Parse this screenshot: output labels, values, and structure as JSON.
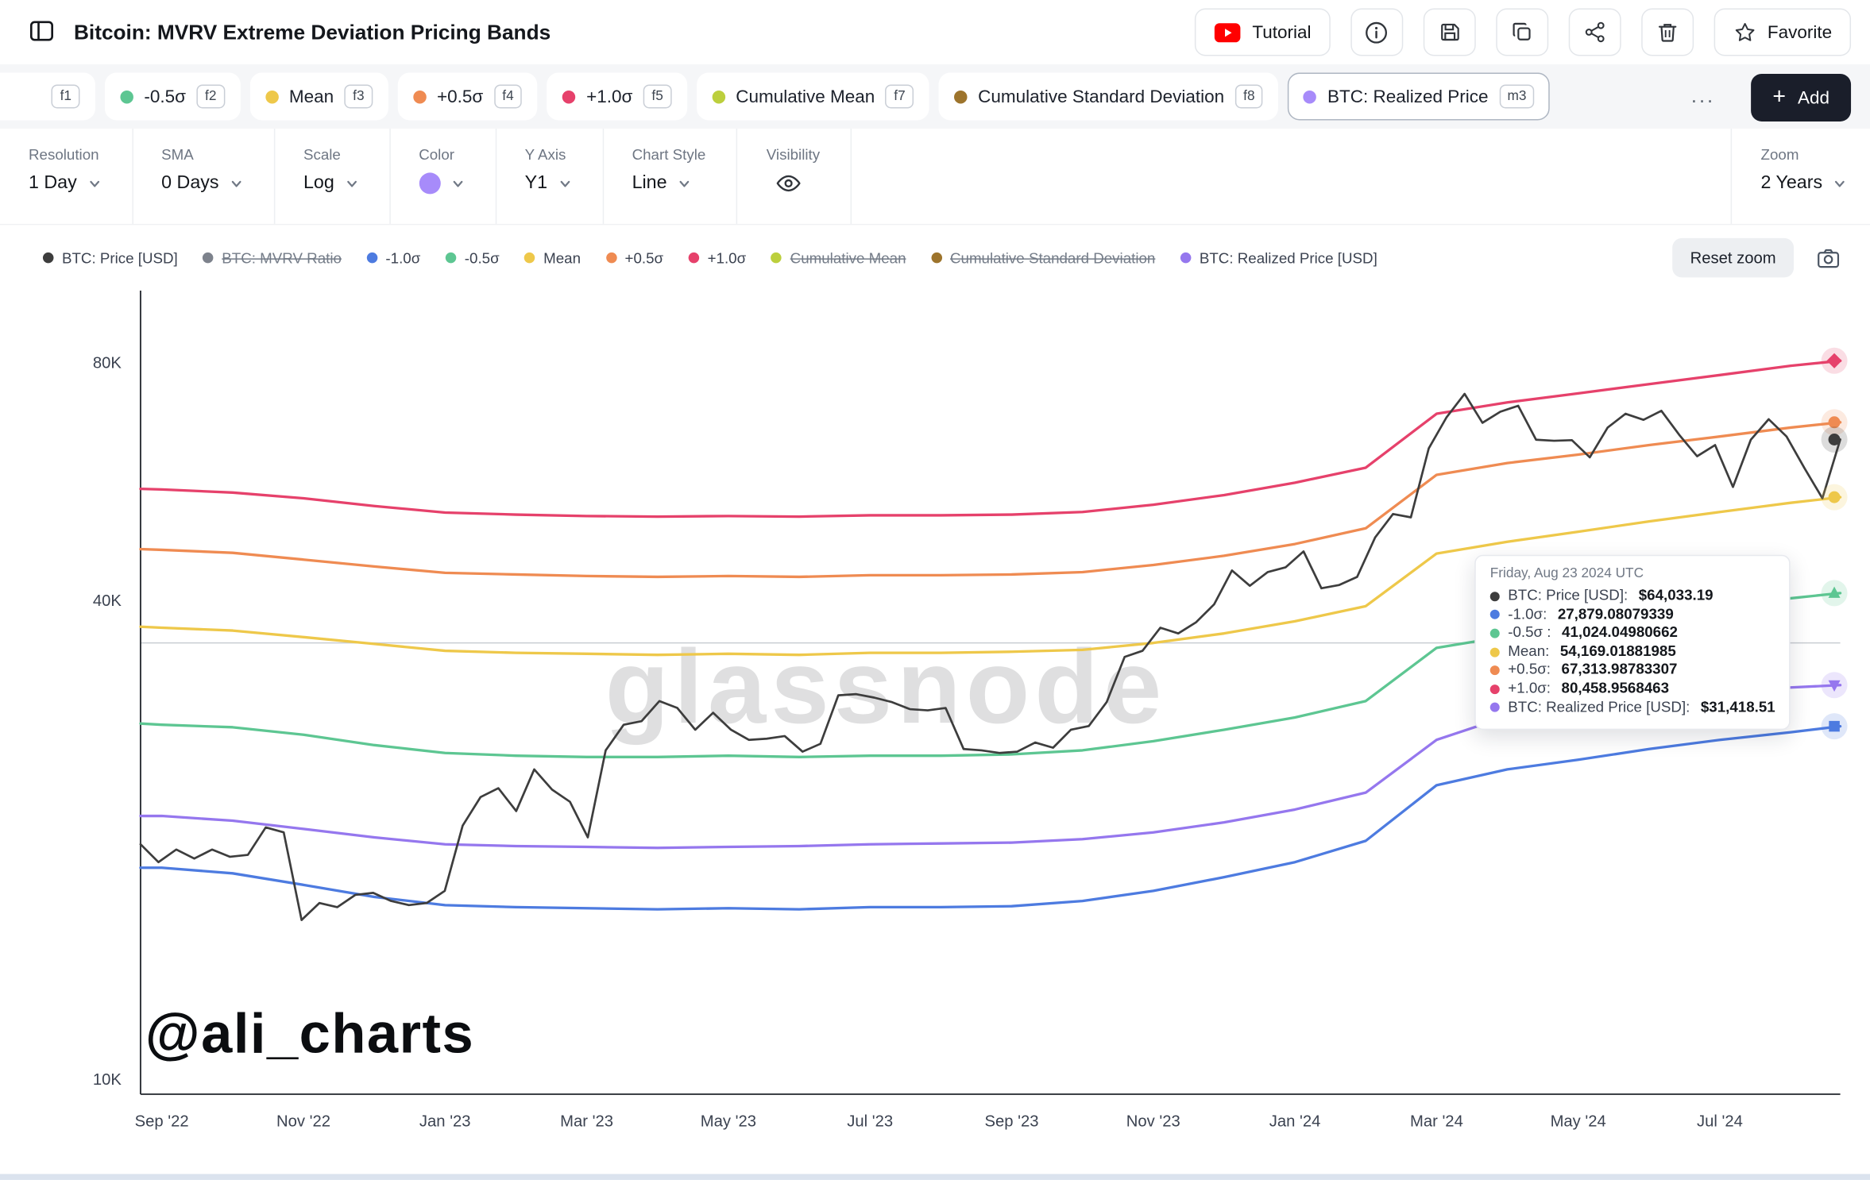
{
  "header": {
    "title": "Bitcoin: MVRV Extreme Deviation Pricing Bands",
    "tutorial_label": "Tutorial",
    "favorite_label": "Favorite"
  },
  "chips_row": {
    "chips": [
      {
        "key": "f1",
        "label": "",
        "color": "",
        "partial": true
      },
      {
        "key": "f2",
        "label": "-0.5σ",
        "color": "#5dc692"
      },
      {
        "key": "f3",
        "label": "Mean",
        "color": "#eec84a"
      },
      {
        "key": "f4",
        "label": "+0.5σ",
        "color": "#ef8b52"
      },
      {
        "key": "f5",
        "label": "+1.0σ",
        "color": "#e6416b"
      },
      {
        "key": "f7",
        "label": "Cumulative Mean",
        "color": "#bccf3d"
      },
      {
        "key": "f8",
        "label": "Cumulative Standard Deviation",
        "color": "#9d742c"
      },
      {
        "key": "m3",
        "label": "BTC: Realized Price",
        "color": "#a78bfa",
        "active": true
      }
    ],
    "more_label": "...",
    "add_icon": "+",
    "add_label": "Add"
  },
  "controls": [
    {
      "label": "Resolution",
      "value": "1 Day",
      "type": "select"
    },
    {
      "label": "SMA",
      "value": "0 Days",
      "type": "select"
    },
    {
      "label": "Scale",
      "value": "Log",
      "type": "select"
    },
    {
      "label": "Color",
      "value": "",
      "type": "color",
      "color": "#a78bfa"
    },
    {
      "label": "Y Axis",
      "value": "Y1",
      "type": "select"
    },
    {
      "label": "Chart Style",
      "value": "Line",
      "type": "select"
    },
    {
      "label": "Visibility",
      "value": "",
      "type": "eye"
    }
  ],
  "zoom_control": {
    "label": "Zoom",
    "value": "2 Years"
  },
  "legend": [
    {
      "label": "BTC: Price [USD]",
      "color": "#3d3d3d",
      "disabled": false
    },
    {
      "label": "BTC: MVRV Ratio",
      "color": "#7d828c",
      "disabled": true
    },
    {
      "label": "-1.0σ",
      "color": "#4d7be0",
      "disabled": false
    },
    {
      "label": "-0.5σ",
      "color": "#5dc692",
      "disabled": false
    },
    {
      "label": "Mean",
      "color": "#eec84a",
      "disabled": false
    },
    {
      "label": "+0.5σ",
      "color": "#ef8b52",
      "disabled": false
    },
    {
      "label": "+1.0σ",
      "color": "#e6416b",
      "disabled": false
    },
    {
      "label": "Cumulative Mean",
      "color": "#bccf3d",
      "disabled": true
    },
    {
      "label": "Cumulative Standard Deviation",
      "color": "#9d742c",
      "disabled": true
    },
    {
      "label": "BTC: Realized Price [USD]",
      "color": "#9577ee",
      "disabled": false
    }
  ],
  "legend_row": {
    "reset_zoom_label": "Reset zoom"
  },
  "chart": {
    "watermark": "glassnode",
    "annotation": "@ali_charts"
  },
  "tooltip": {
    "date": "Friday, Aug 23 2024 UTC",
    "rows": [
      {
        "label": "BTC: Price [USD]:",
        "value": "$64,033.19",
        "color": "#3d3d3d"
      },
      {
        "label": "-1.0σ:",
        "value": "27,879.08079339",
        "color": "#4d7be0"
      },
      {
        "label": "-0.5σ :",
        "value": "41,024.04980662",
        "color": "#5dc692"
      },
      {
        "label": "Mean:",
        "value": "54,169.01881985",
        "color": "#eec84a"
      },
      {
        "label": "+0.5σ:",
        "value": "67,313.98783307",
        "color": "#ef8b52"
      },
      {
        "label": "+1.0σ:",
        "value": "80,458.9568463",
        "color": "#e6416b"
      },
      {
        "label": "BTC: Realized Price [USD]:",
        "value": "$31,418.51",
        "color": "#9577ee"
      }
    ]
  },
  "chart_data": {
    "type": "line",
    "title": "Bitcoin: MVRV Extreme Deviation Pricing Bands",
    "y_scale": "log",
    "values_unit": "thousand USD",
    "ylim_usd": [
      10000,
      99000
    ],
    "grid": false,
    "legend_position": "top-left",
    "y_ticks": [
      {
        "label": "80K",
        "value": 80
      },
      {
        "label": "40K",
        "value": 40
      },
      {
        "label": "10K",
        "value": 10
      }
    ],
    "x_ticks": [
      {
        "label": "Sep '22",
        "m": 0
      },
      {
        "label": "Nov '22",
        "m": 2
      },
      {
        "label": "Jan '23",
        "m": 4
      },
      {
        "label": "Mar '23",
        "m": 6
      },
      {
        "label": "May '23",
        "m": 8
      },
      {
        "label": "Jul '23",
        "m": 10
      },
      {
        "label": "Sep '23",
        "m": 12
      },
      {
        "label": "Nov '23",
        "m": 14
      },
      {
        "label": "Jan '24",
        "m": 16
      },
      {
        "label": "Mar '24",
        "m": 18
      },
      {
        "label": "May '24",
        "m": 20
      },
      {
        "label": "Jul '24",
        "m": 22
      }
    ],
    "x_domain_months": [
      -0.3,
      23.7
    ],
    "crosshair_value": 35.5,
    "band_x": [
      -0.3,
      0,
      1,
      2,
      3,
      4,
      5,
      6,
      7,
      8,
      9,
      10,
      11,
      12,
      13,
      14,
      15,
      16,
      17,
      18,
      19,
      20,
      21,
      22,
      23,
      23.7
    ],
    "series": [
      {
        "name": "-1.0σ",
        "color": "#4d7be0",
        "marker": "square",
        "x": "band_x",
        "values": [
          18.5,
          18.5,
          18.2,
          17.6,
          17.0,
          16.6,
          16.5,
          16.45,
          16.4,
          16.45,
          16.4,
          16.5,
          16.5,
          16.55,
          16.8,
          17.3,
          18.0,
          18.8,
          20.0,
          23.5,
          24.6,
          25.3,
          26.1,
          26.8,
          27.4,
          27.88
        ]
      },
      {
        "name": "-0.5σ",
        "color": "#5dc692",
        "marker": "triangle-up",
        "x": "band_x",
        "values": [
          28.1,
          28.0,
          27.8,
          27.2,
          26.4,
          25.8,
          25.6,
          25.5,
          25.5,
          25.6,
          25.5,
          25.6,
          25.6,
          25.7,
          26.0,
          26.7,
          27.6,
          28.6,
          30.0,
          35.0,
          36.2,
          37.3,
          38.5,
          39.5,
          40.4,
          41.02
        ]
      },
      {
        "name": "Mean",
        "color": "#eec84a",
        "marker": "circle",
        "x": "band_x",
        "values": [
          37.2,
          37.1,
          36.8,
          36.1,
          35.4,
          34.7,
          34.5,
          34.4,
          34.3,
          34.4,
          34.3,
          34.5,
          34.5,
          34.6,
          34.8,
          35.5,
          36.5,
          37.8,
          39.5,
          46.0,
          47.6,
          49.0,
          50.5,
          51.9,
          53.3,
          54.17
        ]
      },
      {
        "name": "+0.5σ",
        "color": "#ef8b52",
        "marker": "circle",
        "x": "band_x",
        "values": [
          46.6,
          46.5,
          46.1,
          45.2,
          44.3,
          43.5,
          43.3,
          43.1,
          43.0,
          43.1,
          43.0,
          43.2,
          43.2,
          43.3,
          43.6,
          44.5,
          45.7,
          47.3,
          49.5,
          57.8,
          59.8,
          61.3,
          63.0,
          64.6,
          66.3,
          67.31
        ]
      },
      {
        "name": "+1.0σ",
        "color": "#e6416b",
        "marker": "diamond",
        "x": "band_x",
        "values": [
          55.5,
          55.4,
          54.9,
          54.0,
          52.8,
          51.8,
          51.5,
          51.3,
          51.2,
          51.3,
          51.2,
          51.4,
          51.4,
          51.5,
          51.9,
          53.0,
          54.5,
          56.5,
          59.0,
          69.0,
          71.3,
          73.2,
          75.2,
          77.2,
          79.3,
          80.46
        ]
      },
      {
        "name": "BTC: Realized Price [USD]",
        "color": "#9577ee",
        "marker": "triangle-down",
        "x": "band_x",
        "values": [
          21.5,
          21.5,
          21.2,
          20.7,
          20.2,
          19.8,
          19.7,
          19.65,
          19.6,
          19.65,
          19.7,
          19.8,
          19.85,
          19.9,
          20.1,
          20.5,
          21.1,
          21.9,
          23.0,
          26.8,
          28.7,
          29.7,
          30.4,
          30.9,
          31.2,
          31.42
        ]
      },
      {
        "name": "BTC: Price [USD]",
        "color": "#3d3d3d",
        "marker": "circle",
        "x_even": [
          -0.3,
          23.7
        ],
        "values": [
          19.8,
          18.8,
          19.5,
          19.0,
          19.5,
          19.1,
          19.2,
          20.8,
          20.5,
          15.9,
          16.7,
          16.5,
          17.1,
          17.2,
          16.8,
          16.6,
          16.7,
          17.3,
          20.9,
          22.7,
          23.3,
          21.8,
          24.6,
          23.2,
          22.4,
          20.2,
          26.0,
          28.0,
          28.3,
          30.0,
          29.4,
          27.6,
          29.0,
          27.6,
          26.8,
          26.9,
          27.1,
          25.9,
          26.5,
          30.5,
          30.6,
          30.3,
          29.9,
          29.3,
          29.2,
          29.4,
          26.1,
          26.0,
          25.8,
          25.9,
          26.6,
          26.2,
          27.6,
          27.9,
          29.9,
          34.1,
          34.7,
          37.1,
          36.5,
          37.7,
          39.7,
          43.8,
          41.9,
          43.6,
          44.2,
          46.3,
          41.6,
          42.0,
          43.0,
          48.2,
          51.6,
          51.1,
          62.4,
          68.3,
          73.1,
          67.2,
          69.4,
          70.6,
          64.0,
          63.8,
          63.9,
          60.8,
          66.3,
          69.0,
          67.8,
          69.6,
          64.9,
          61.0,
          63.0,
          55.8,
          64.0,
          67.9,
          64.6,
          58.9,
          54.0,
          64.03
        ]
      }
    ]
  }
}
